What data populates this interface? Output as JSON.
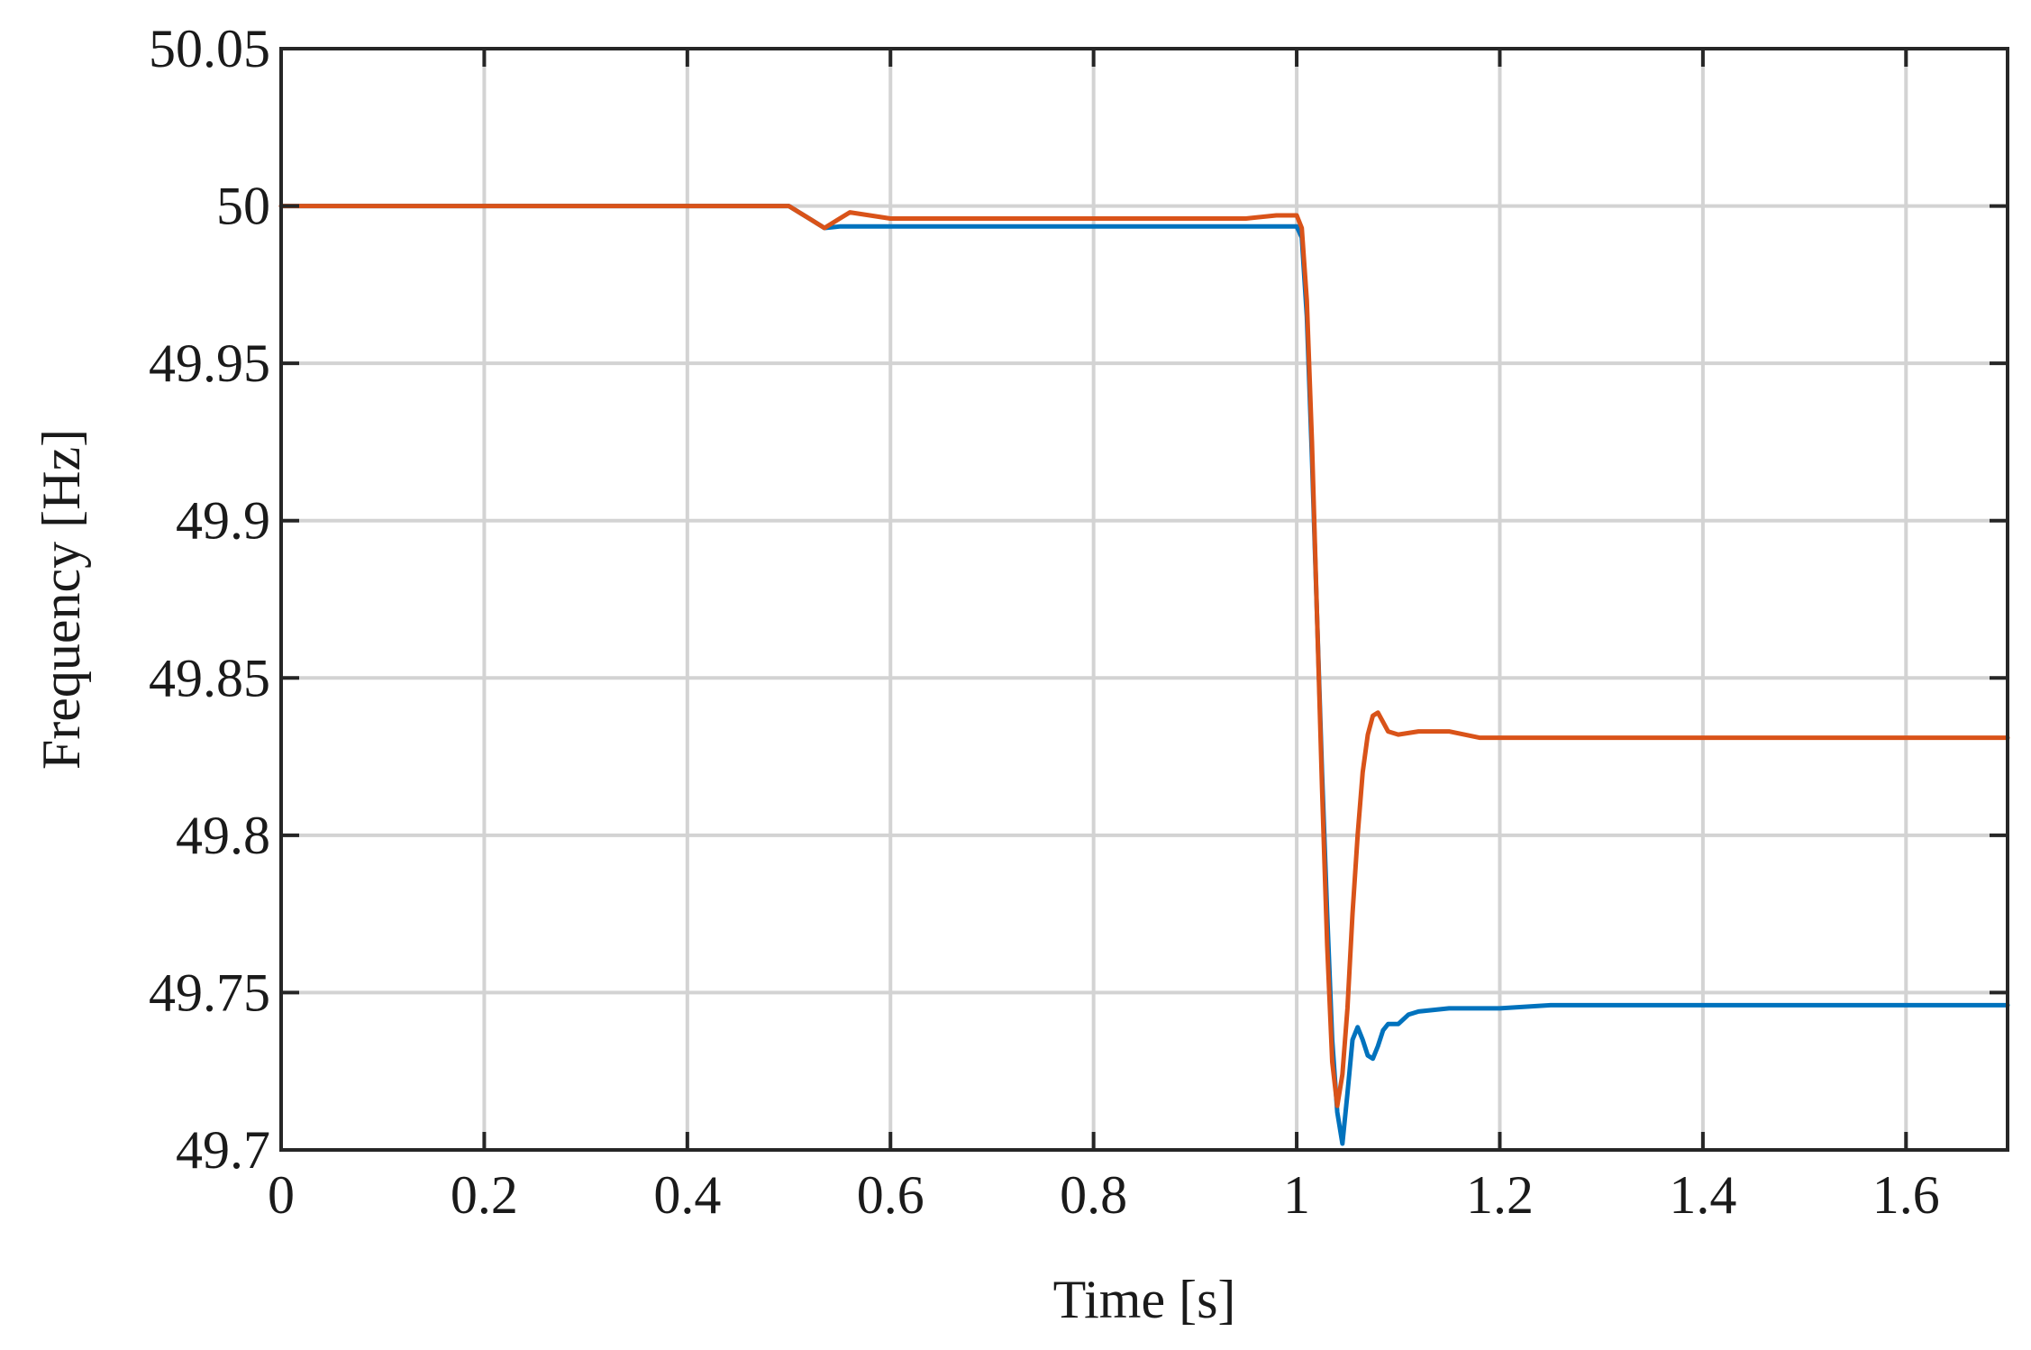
{
  "chart_data": {
    "type": "line",
    "title": "",
    "xlabel": "Time [s]",
    "ylabel": "Frequency [Hz]",
    "xlim": [
      0,
      1.7
    ],
    "ylim": [
      49.7,
      50.05
    ],
    "xticks": [
      0,
      0.2,
      0.4,
      0.6,
      0.8,
      1,
      1.2,
      1.4,
      1.6
    ],
    "xtick_labels": [
      "0",
      "0.2",
      "0.4",
      "0.6",
      "0.8",
      "1",
      "1.2",
      "1.4",
      "1.6"
    ],
    "yticks": [
      49.7,
      49.75,
      49.8,
      49.85,
      49.9,
      49.95,
      50,
      50.05
    ],
    "ytick_labels": [
      "49.7",
      "49.75",
      "49.8",
      "49.85",
      "49.9",
      "49.95",
      "50",
      "50.05"
    ],
    "grid": true,
    "legend": false,
    "series": [
      {
        "color": "#0072BD",
        "x": [
          0,
          0.1,
          0.2,
          0.3,
          0.4,
          0.5,
          0.52,
          0.535,
          0.55,
          0.6,
          0.65,
          0.7,
          0.75,
          0.8,
          0.85,
          0.9,
          0.95,
          0.98,
          1.0,
          1.005,
          1.01,
          1.015,
          1.02,
          1.025,
          1.03,
          1.035,
          1.04,
          1.045,
          1.05,
          1.055,
          1.06,
          1.065,
          1.07,
          1.075,
          1.08,
          1.085,
          1.09,
          1.1,
          1.11,
          1.12,
          1.15,
          1.2,
          1.25,
          1.3,
          1.4,
          1.5,
          1.6,
          1.7
        ],
        "y": [
          50.0,
          50.0,
          50.0,
          50.0,
          50.0,
          50.0,
          49.996,
          49.993,
          49.9935,
          49.9935,
          49.9935,
          49.9935,
          49.9935,
          49.9935,
          49.9935,
          49.9935,
          49.9935,
          49.9935,
          49.9935,
          49.99,
          49.965,
          49.92,
          49.87,
          49.82,
          49.775,
          49.735,
          49.712,
          49.702,
          49.718,
          49.735,
          49.739,
          49.735,
          49.73,
          49.729,
          49.733,
          49.738,
          49.74,
          49.74,
          49.743,
          49.744,
          49.745,
          49.745,
          49.746,
          49.746,
          49.746,
          49.746,
          49.746,
          49.746
        ]
      },
      {
        "color": "#D95319",
        "x": [
          0,
          0.1,
          0.2,
          0.3,
          0.4,
          0.5,
          0.52,
          0.535,
          0.55,
          0.56,
          0.6,
          0.65,
          0.7,
          0.75,
          0.8,
          0.85,
          0.9,
          0.95,
          0.98,
          1.0,
          1.005,
          1.01,
          1.015,
          1.02,
          1.025,
          1.03,
          1.035,
          1.04,
          1.045,
          1.05,
          1.055,
          1.06,
          1.065,
          1.07,
          1.075,
          1.08,
          1.085,
          1.09,
          1.1,
          1.12,
          1.15,
          1.18,
          1.2,
          1.25,
          1.3,
          1.4,
          1.5,
          1.6,
          1.7
        ],
        "y": [
          50.0,
          50.0,
          50.0,
          50.0,
          50.0,
          50.0,
          49.996,
          49.993,
          49.996,
          49.998,
          49.996,
          49.996,
          49.996,
          49.996,
          49.996,
          49.996,
          49.996,
          49.996,
          49.997,
          49.997,
          49.993,
          49.97,
          49.925,
          49.87,
          49.815,
          49.765,
          49.728,
          49.714,
          49.724,
          49.745,
          49.775,
          49.8,
          49.82,
          49.832,
          49.838,
          49.839,
          49.836,
          49.833,
          49.832,
          49.833,
          49.833,
          49.831,
          49.831,
          49.831,
          49.831,
          49.831,
          49.831,
          49.831,
          49.831
        ]
      }
    ]
  }
}
